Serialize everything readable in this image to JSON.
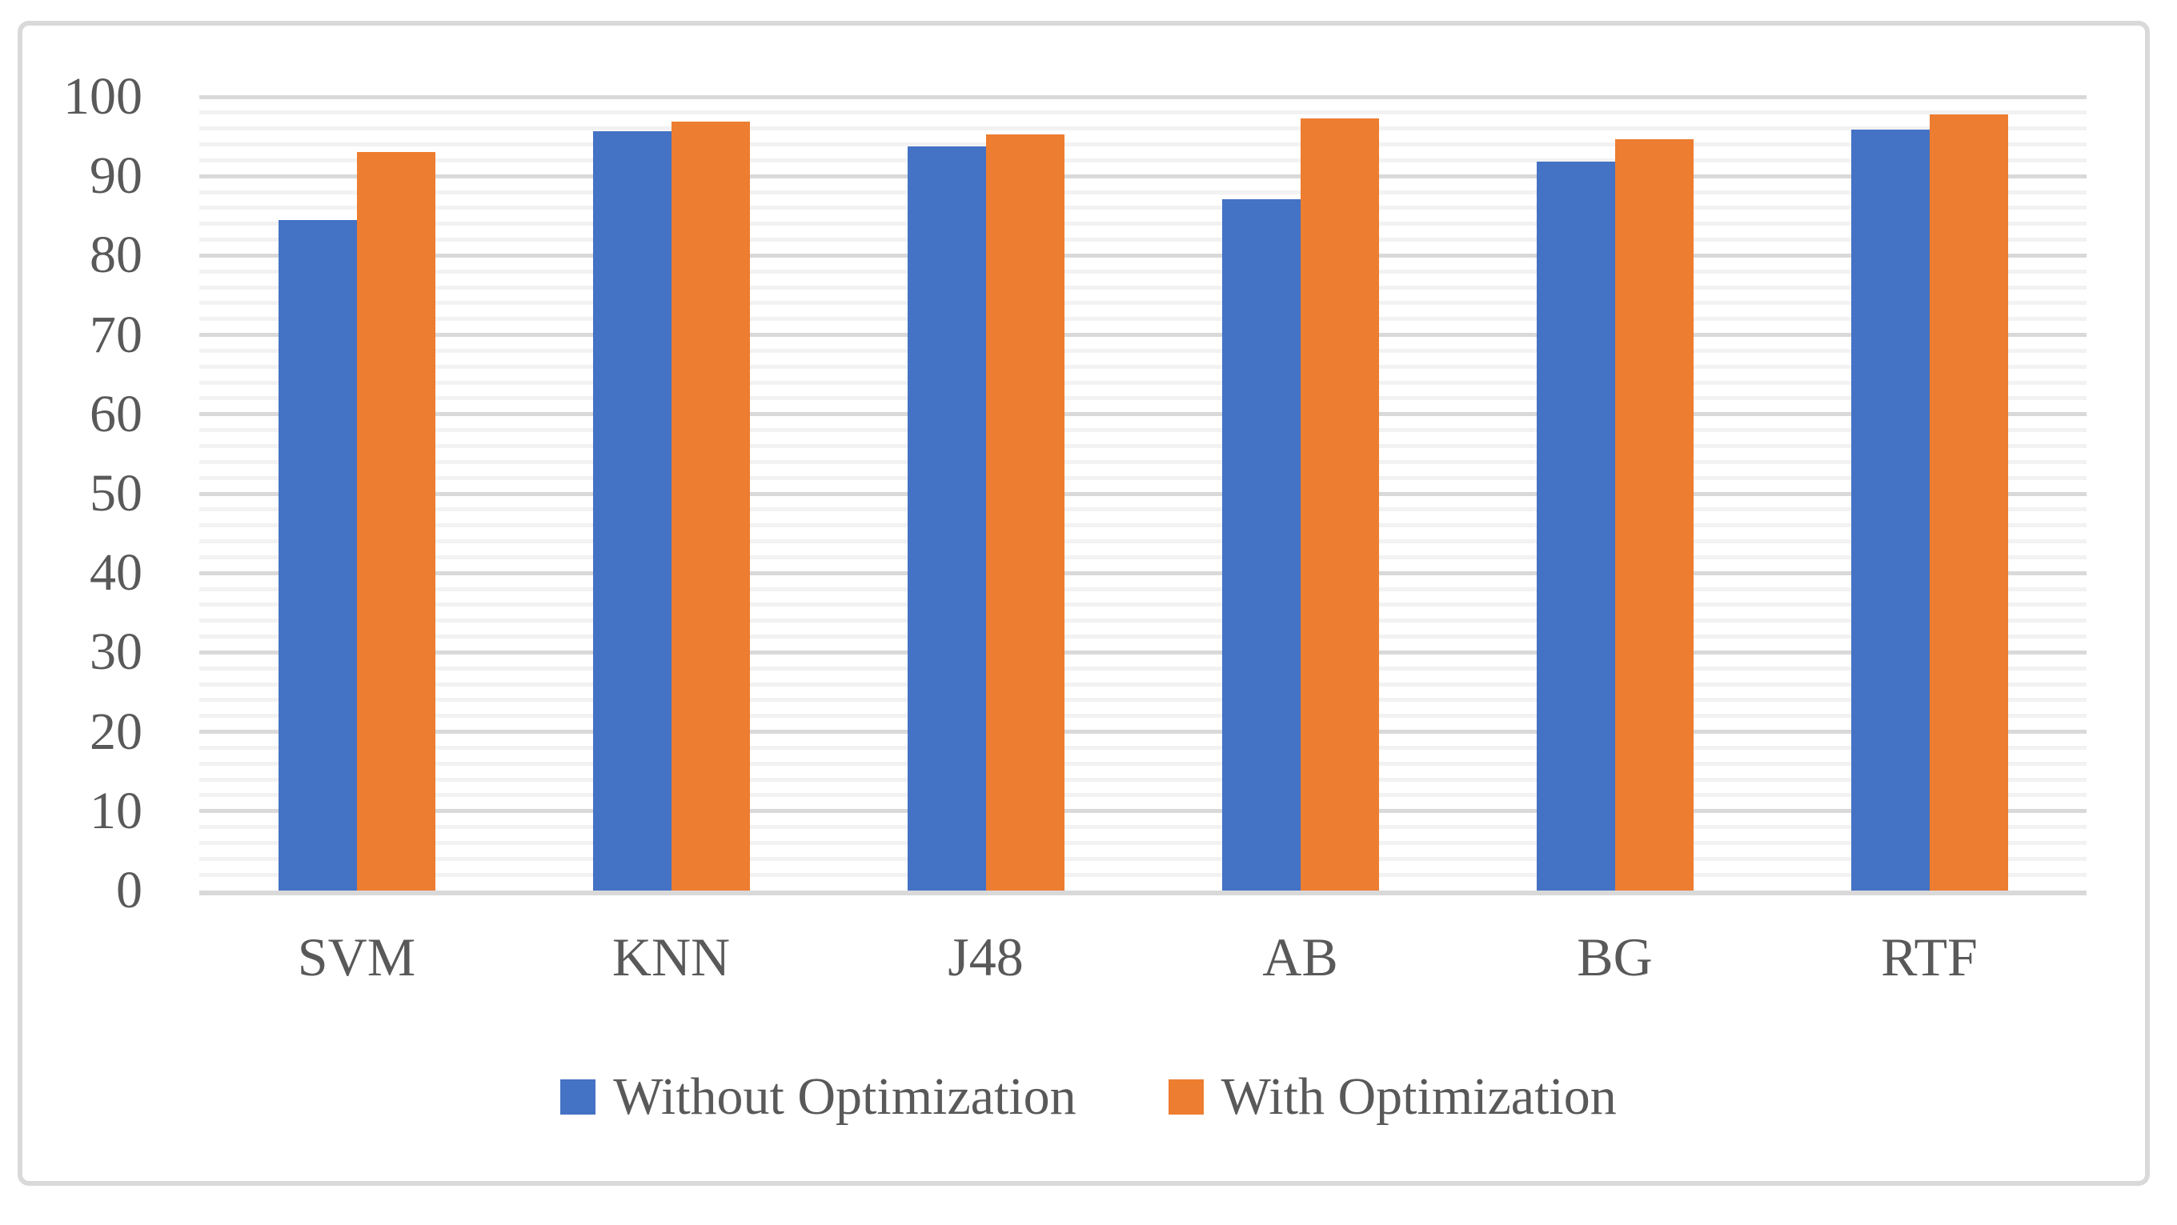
{
  "chart_data": {
    "type": "bar",
    "categories": [
      "SVM",
      "KNN",
      "J48",
      "AB",
      "BG",
      "RTF"
    ],
    "series": [
      {
        "name": "Without Optimization",
        "color": "#4472C4",
        "values": [
          84.5,
          95.7,
          93.8,
          87.1,
          91.8,
          95.9
        ]
      },
      {
        "name": "With Optimization",
        "color": "#ED7D31",
        "values": [
          93.0,
          96.9,
          95.3,
          97.3,
          94.7,
          97.8
        ]
      }
    ],
    "title": "",
    "xlabel": "",
    "ylabel": "",
    "ylim": [
      0,
      100
    ],
    "yticks": [
      0,
      10,
      20,
      30,
      40,
      50,
      60,
      70,
      80,
      90,
      100
    ],
    "major_step": 10,
    "minor_step": 2,
    "grid": true,
    "legend_position": "bottom"
  },
  "style": {
    "background": "#ffffff",
    "frame_border": "#d9d9d9",
    "major_gridline": "#d9d9d9",
    "minor_gridline": "#f2f2f2",
    "axis_line": "#d9d9d9",
    "axis_text": "#595959"
  }
}
